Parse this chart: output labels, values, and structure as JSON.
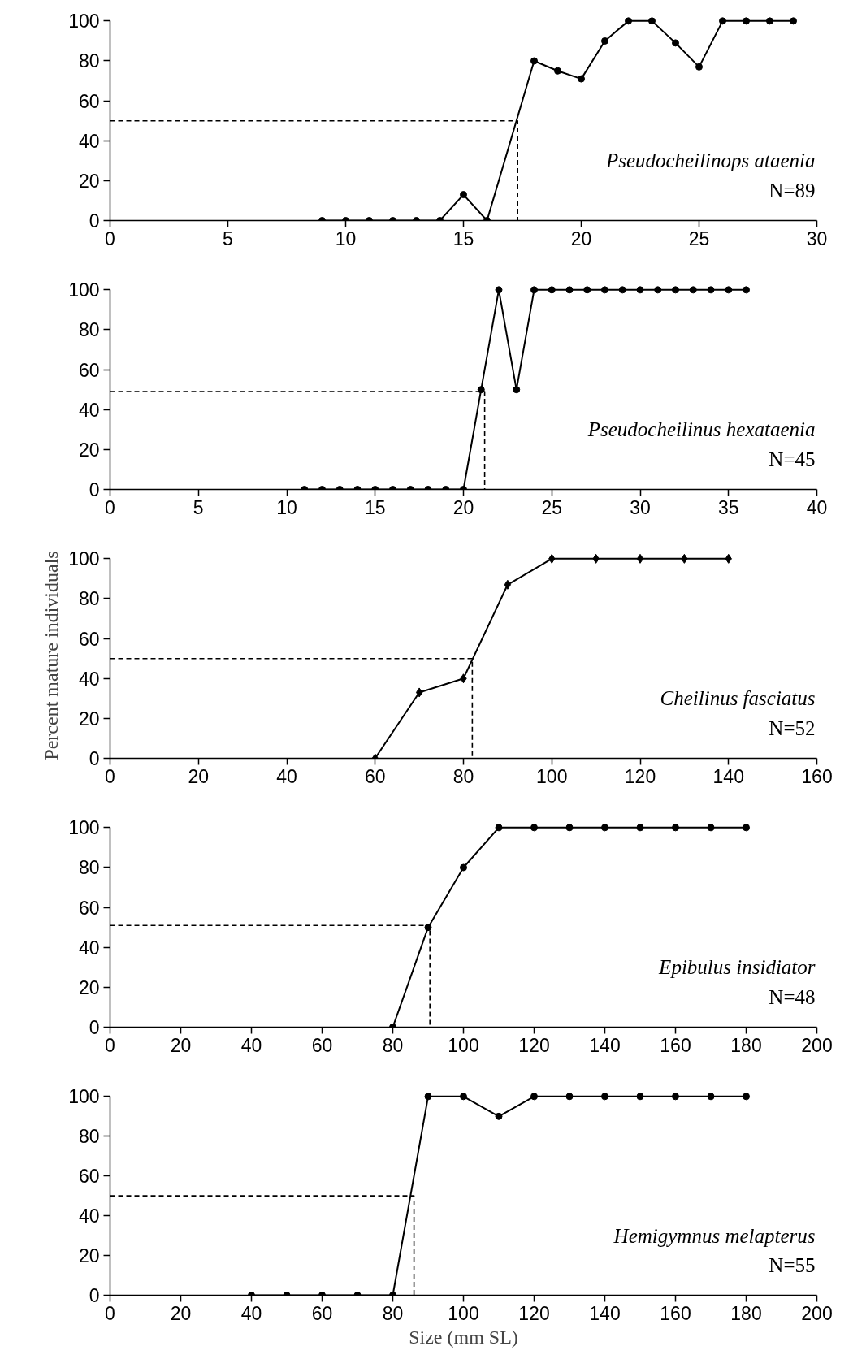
{
  "chart_data": [
    {
      "type": "line",
      "xlim": [
        0,
        30
      ],
      "xticks": [
        0,
        5,
        10,
        15,
        20,
        25,
        30
      ],
      "ylim": [
        0,
        100
      ],
      "yticks": [
        0,
        20,
        40,
        60,
        80,
        100
      ],
      "grid": false,
      "annotations": [
        "Pseudocheilinops ataenia",
        "N=89"
      ],
      "series": [
        {
          "color": "#000000",
          "marker": "circle",
          "line_style": "solid",
          "x": [
            9,
            10,
            11,
            12,
            13,
            14,
            15,
            16,
            18,
            19,
            20,
            21,
            22,
            23,
            24,
            25,
            26,
            27,
            28,
            29
          ],
          "values": [
            0,
            0,
            0,
            0,
            0,
            0,
            13,
            0,
            80,
            75,
            71,
            90,
            100,
            100,
            89,
            77,
            100,
            100,
            100,
            100
          ]
        },
        {
          "color": "#000000",
          "marker": "none",
          "line_style": "dashed",
          "x": [
            0,
            17.3,
            17.3
          ],
          "values": [
            50,
            50,
            0
          ]
        }
      ]
    },
    {
      "type": "line",
      "xlim": [
        0,
        40
      ],
      "xticks": [
        0,
        5,
        10,
        15,
        20,
        25,
        30,
        35,
        40
      ],
      "ylim": [
        0,
        100
      ],
      "yticks": [
        0,
        20,
        40,
        60,
        80,
        100
      ],
      "grid": false,
      "annotations": [
        "Pseudocheilinus hexataenia",
        "N=45"
      ],
      "series": [
        {
          "color": "#000000",
          "marker": "circle",
          "line_style": "solid",
          "x": [
            11,
            12,
            13,
            14,
            15,
            16,
            17,
            18,
            19,
            20,
            21,
            22,
            23,
            24,
            25,
            26,
            27,
            28,
            29,
            30,
            31,
            32,
            33,
            34,
            35,
            36
          ],
          "values": [
            0,
            0,
            0,
            0,
            0,
            0,
            0,
            0,
            0,
            0,
            50,
            100,
            50,
            100,
            100,
            100,
            100,
            100,
            100,
            100,
            100,
            100,
            100,
            100,
            100,
            100
          ]
        },
        {
          "color": "#000000",
          "marker": "none",
          "line_style": "dashed",
          "x": [
            0,
            21.2,
            21.2
          ],
          "values": [
            49,
            49,
            0
          ]
        }
      ]
    },
    {
      "type": "line",
      "xlim": [
        0,
        160
      ],
      "xticks": [
        0,
        20,
        40,
        60,
        80,
        100,
        120,
        140,
        160
      ],
      "ylim": [
        0,
        100
      ],
      "yticks": [
        0,
        20,
        40,
        60,
        80,
        100
      ],
      "grid": false,
      "ylabel": "Percent mature individuals",
      "annotations": [
        "Cheilinus fasciatus",
        "N=52"
      ],
      "series": [
        {
          "color": "#000000",
          "marker": "diamond",
          "line_style": "solid",
          "x": [
            60,
            70,
            80,
            90,
            100,
            110,
            120,
            130,
            140
          ],
          "values": [
            0,
            33,
            40,
            87,
            100,
            100,
            100,
            100,
            100
          ]
        },
        {
          "color": "#000000",
          "marker": "none",
          "line_style": "dashed",
          "x": [
            0,
            82,
            82
          ],
          "values": [
            50,
            50,
            0
          ]
        }
      ]
    },
    {
      "type": "line",
      "xlim": [
        0,
        200
      ],
      "xticks": [
        0,
        20,
        40,
        60,
        80,
        100,
        120,
        140,
        160,
        180,
        200
      ],
      "ylim": [
        0,
        100
      ],
      "yticks": [
        0,
        20,
        40,
        60,
        80,
        100
      ],
      "grid": false,
      "annotations": [
        "Epibulus insidiator",
        "N=48"
      ],
      "series": [
        {
          "color": "#000000",
          "marker": "circle",
          "line_style": "solid",
          "x": [
            80,
            90,
            100,
            110,
            120,
            130,
            140,
            150,
            160,
            170,
            180
          ],
          "values": [
            0,
            50,
            80,
            100,
            100,
            100,
            100,
            100,
            100,
            100,
            100
          ]
        },
        {
          "color": "#000000",
          "marker": "none",
          "line_style": "dashed",
          "x": [
            0,
            90.5,
            90.5
          ],
          "values": [
            51,
            51,
            0
          ]
        }
      ]
    },
    {
      "type": "line",
      "xlim": [
        0,
        200
      ],
      "xticks": [
        0,
        20,
        40,
        60,
        80,
        100,
        120,
        140,
        160,
        180,
        200
      ],
      "ylim": [
        0,
        100
      ],
      "yticks": [
        0,
        20,
        40,
        60,
        80,
        100
      ],
      "grid": false,
      "xlabel": "Size (mm SL)",
      "annotations": [
        "Hemigymnus melapterus",
        "N=55"
      ],
      "series": [
        {
          "color": "#000000",
          "marker": "circle",
          "line_style": "solid",
          "x": [
            40,
            50,
            60,
            70,
            80,
            90,
            100,
            110,
            120,
            130,
            140,
            150,
            160,
            170,
            180
          ],
          "values": [
            0,
            0,
            0,
            0,
            0,
            100,
            100,
            90,
            100,
            100,
            100,
            100,
            100,
            100,
            100
          ]
        },
        {
          "color": "#000000",
          "marker": "none",
          "line_style": "dashed",
          "x": [
            0,
            86,
            86
          ],
          "values": [
            50,
            50,
            0
          ]
        }
      ]
    }
  ]
}
